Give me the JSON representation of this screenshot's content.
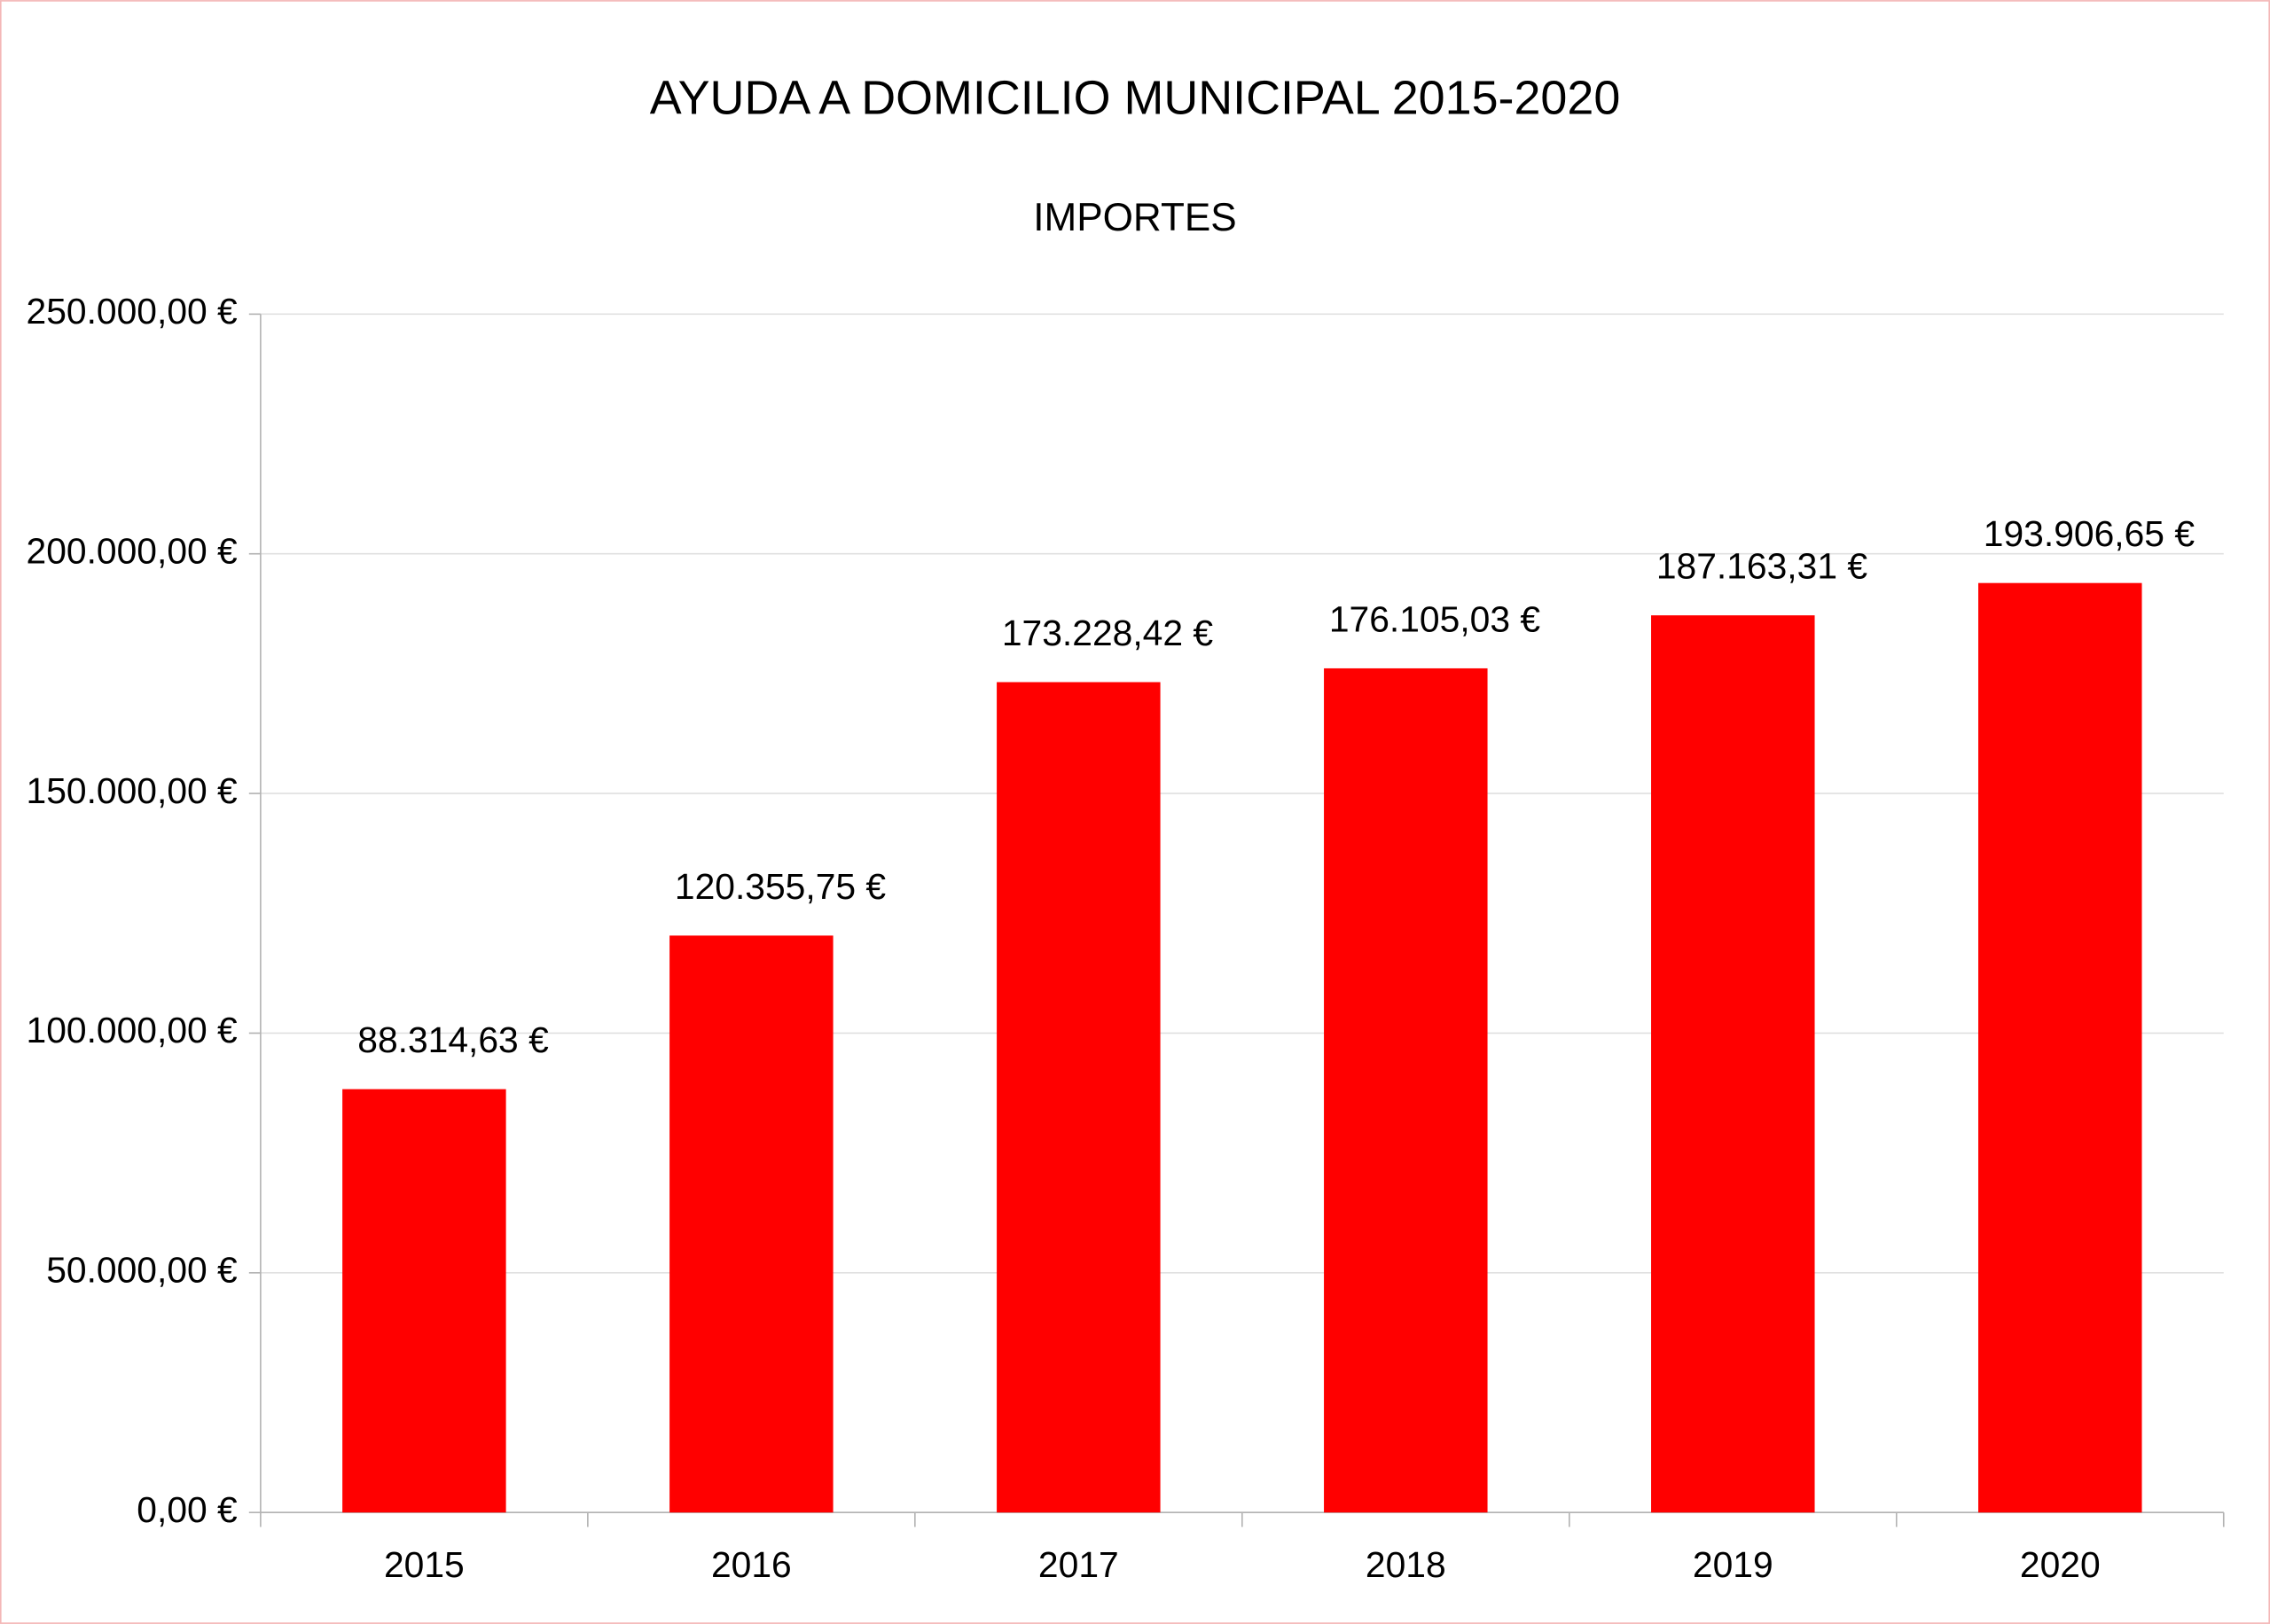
{
  "chart_data": {
    "type": "bar",
    "title": "AYUDA A DOMICILIO MUNICIPAL 2015-2020",
    "subtitle": "IMPORTES",
    "categories": [
      "2015",
      "2016",
      "2017",
      "2018",
      "2019",
      "2020"
    ],
    "values": [
      88314.63,
      120355.75,
      173228.42,
      176105.03,
      187163.31,
      193906.65
    ],
    "value_labels": [
      "88.314,63 €",
      "120.355,75 €",
      "173.228,42 €",
      "176.105,03 €",
      "187.163,31 €",
      "193.906,65 €"
    ],
    "color": "#ff0000",
    "ylim": [
      0,
      250000
    ],
    "yticks": [
      {
        "value": 0,
        "label": "0,00 €"
      },
      {
        "value": 50000,
        "label": "50.000,00 €"
      },
      {
        "value": 100000,
        "label": "100.000,00 €"
      },
      {
        "value": 150000,
        "label": "150.000,00 €"
      },
      {
        "value": 200000,
        "label": "200.000,00 €"
      },
      {
        "value": 250000,
        "label": "250.000,00 €"
      }
    ],
    "grid": true
  }
}
